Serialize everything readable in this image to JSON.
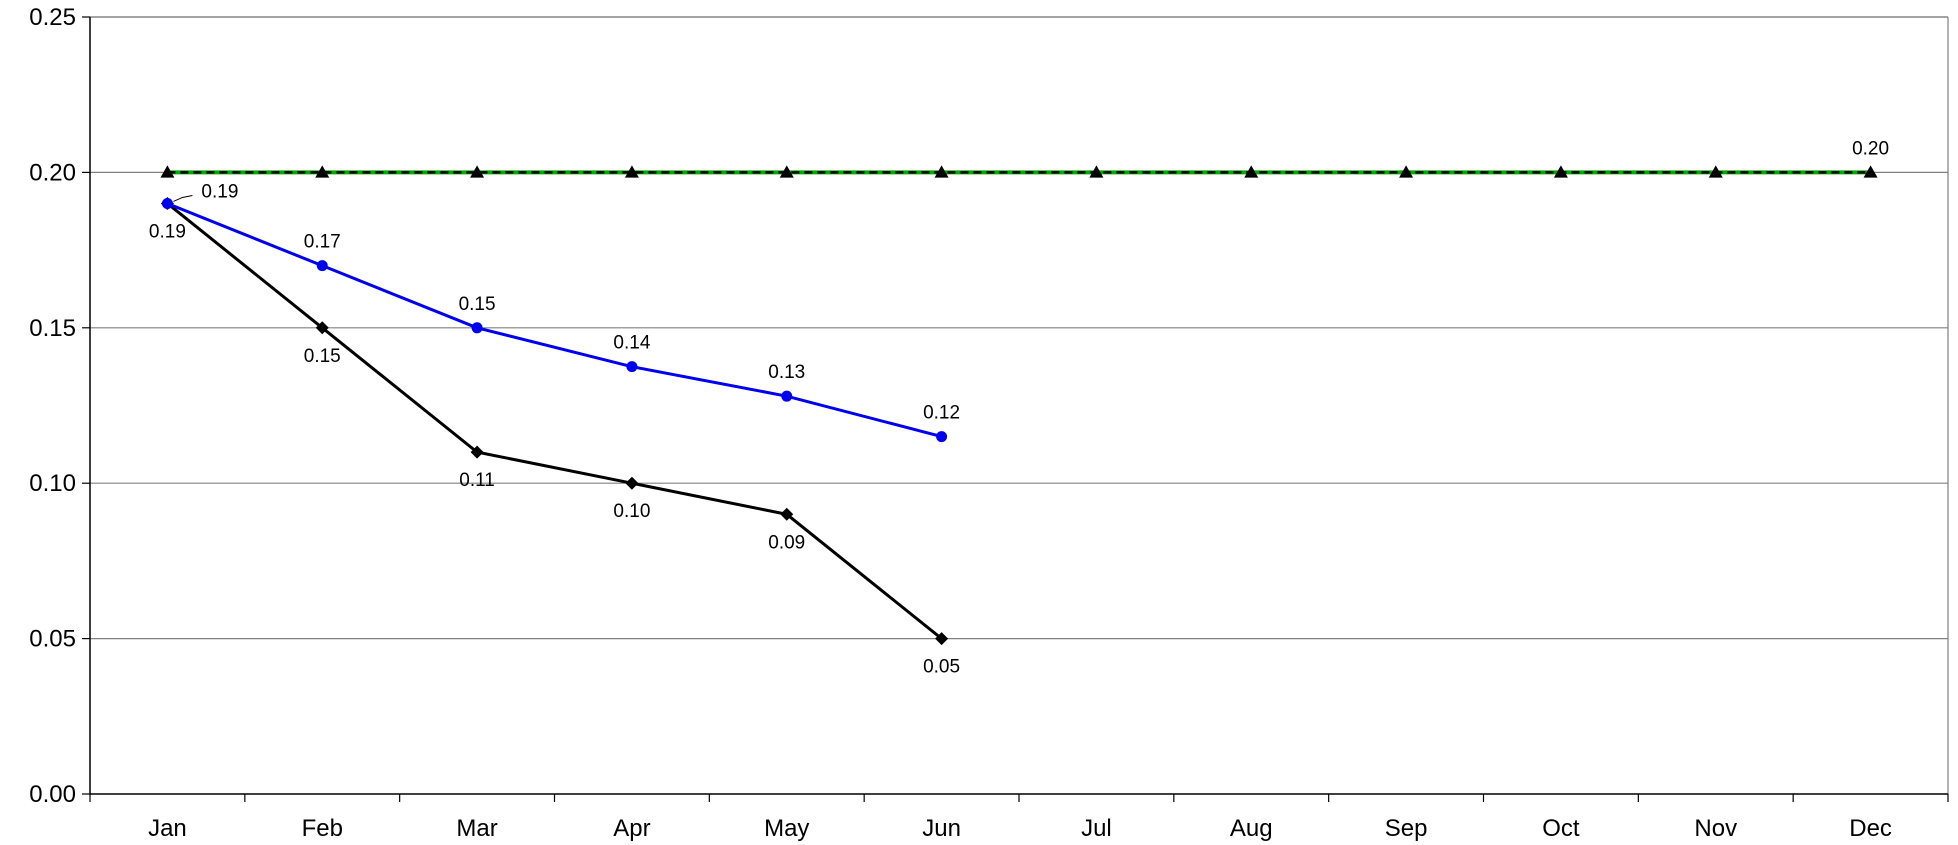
{
  "chart_data": {
    "type": "line",
    "title": "",
    "xlabel": "",
    "ylabel": "",
    "ylim": [
      0,
      0.25
    ],
    "y_ticks": [
      "0.00",
      "0.05",
      "0.10",
      "0.15",
      "0.20",
      "0.25"
    ],
    "categories": [
      "Jan",
      "Feb",
      "Mar",
      "Apr",
      "May",
      "Jun",
      "Jul",
      "Aug",
      "Sep",
      "Oct",
      "Nov",
      "Dec"
    ],
    "grid": "horizontal",
    "legend": "none",
    "series": [
      {
        "key": "blue",
        "color": "#0000ee",
        "marker": "circle",
        "values": [
          0.19,
          0.17,
          0.15,
          0.1375,
          0.128,
          0.115,
          null,
          null,
          null,
          null,
          null,
          null
        ],
        "labels": [
          "0.19",
          "0.17",
          "0.15",
          "0.14",
          "0.13",
          "0.12",
          "",
          "",
          "",
          "",
          "",
          ""
        ],
        "label_position": "above"
      },
      {
        "key": "black",
        "color": "#000000",
        "marker": "diamond",
        "values": [
          0.19,
          0.15,
          0.11,
          0.1,
          0.09,
          0.05,
          null,
          null,
          null,
          null,
          null,
          null
        ],
        "labels": [
          "0.19",
          "0.15",
          "0.11",
          "0.10",
          "0.09",
          "0.05",
          "",
          "",
          "",
          "",
          "",
          ""
        ],
        "label_position": "below"
      },
      {
        "key": "target",
        "color": "#00aa00",
        "overlay_color": "#000000",
        "dashed": true,
        "marker": "triangle",
        "values": [
          0.2,
          0.2,
          0.2,
          0.2,
          0.2,
          0.2,
          0.2,
          0.2,
          0.2,
          0.2,
          0.2,
          0.2
        ],
        "labels": [
          "",
          "",
          "",
          "",
          "",
          "",
          "",
          "",
          "",
          "",
          "",
          "0.20"
        ],
        "label_position": "above"
      }
    ]
  }
}
